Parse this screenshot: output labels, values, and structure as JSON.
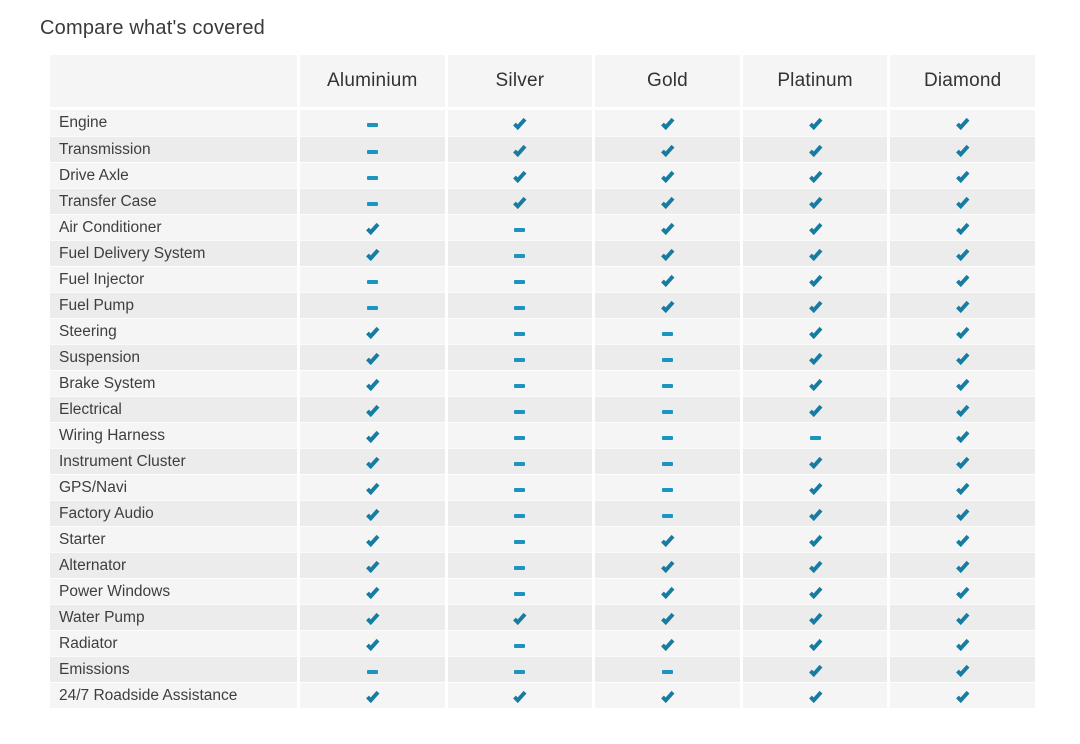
{
  "title": "Compare what's covered",
  "table": {
    "columns": [
      "Aluminium",
      "Silver",
      "Gold",
      "Platinum",
      "Diamond"
    ],
    "rows": [
      {
        "label": "Engine",
        "values": [
          false,
          true,
          true,
          true,
          true
        ]
      },
      {
        "label": "Transmission",
        "values": [
          false,
          true,
          true,
          true,
          true
        ]
      },
      {
        "label": "Drive Axle",
        "values": [
          false,
          true,
          true,
          true,
          true
        ]
      },
      {
        "label": "Transfer Case",
        "values": [
          false,
          true,
          true,
          true,
          true
        ]
      },
      {
        "label": "Air Conditioner",
        "values": [
          true,
          false,
          true,
          true,
          true
        ]
      },
      {
        "label": "Fuel Delivery System",
        "values": [
          true,
          false,
          true,
          true,
          true
        ]
      },
      {
        "label": "Fuel Injector",
        "values": [
          false,
          false,
          true,
          true,
          true
        ]
      },
      {
        "label": "Fuel Pump",
        "values": [
          false,
          false,
          true,
          true,
          true
        ]
      },
      {
        "label": "Steering",
        "values": [
          true,
          false,
          false,
          true,
          true
        ]
      },
      {
        "label": "Suspension",
        "values": [
          true,
          false,
          false,
          true,
          true
        ]
      },
      {
        "label": "Brake System",
        "values": [
          true,
          false,
          false,
          true,
          true
        ]
      },
      {
        "label": "Electrical",
        "values": [
          true,
          false,
          false,
          true,
          true
        ]
      },
      {
        "label": "Wiring Harness",
        "values": [
          true,
          false,
          false,
          false,
          true
        ]
      },
      {
        "label": "Instrument Cluster",
        "values": [
          true,
          false,
          false,
          true,
          true
        ]
      },
      {
        "label": "GPS/Navi",
        "values": [
          true,
          false,
          false,
          true,
          true
        ]
      },
      {
        "label": "Factory Audio",
        "values": [
          true,
          false,
          false,
          true,
          true
        ]
      },
      {
        "label": "Starter",
        "values": [
          true,
          false,
          true,
          true,
          true
        ]
      },
      {
        "label": "Alternator",
        "values": [
          true,
          false,
          true,
          true,
          true
        ]
      },
      {
        "label": "Power Windows",
        "values": [
          true,
          false,
          true,
          true,
          true
        ]
      },
      {
        "label": "Water Pump",
        "values": [
          true,
          true,
          true,
          true,
          true
        ]
      },
      {
        "label": "Radiator",
        "values": [
          true,
          false,
          true,
          true,
          true
        ]
      },
      {
        "label": "Emissions",
        "values": [
          false,
          false,
          false,
          true,
          true
        ]
      },
      {
        "label": "24/7 Roadside Assistance",
        "values": [
          true,
          true,
          true,
          true,
          true
        ]
      }
    ],
    "legend": {
      "covered_icon": "check-icon",
      "not_covered_icon": "dash-icon"
    },
    "colors": {
      "check": "#177CA1",
      "dash": "#1B94C0",
      "row_odd_bg": "#f5f5f5",
      "row_even_bg": "#ececec",
      "header_bg": "#f5f5f5"
    }
  }
}
